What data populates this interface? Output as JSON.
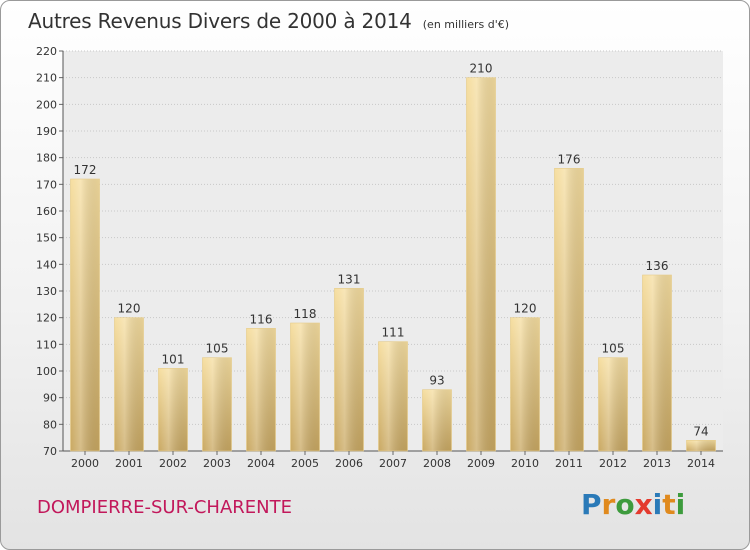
{
  "header": {
    "title": "Autres Revenus Divers de 2000 à 2014",
    "unit": "(en milliers d'€)"
  },
  "footer": {
    "commune": "DOMPIERRE-SUR-CHARENTE",
    "logo_text": "Proxiti",
    "logo_colors": [
      "#2a7ab8",
      "#e08a1e",
      "#3d9b3d",
      "#e43a2e",
      "#2a7ab8",
      "#e08a1e",
      "#3d9b3d"
    ]
  },
  "chart_data": {
    "type": "bar",
    "title": "Autres Revenus Divers de 2000 à 2014",
    "subtitle": "(en milliers d'€)",
    "xlabel": "",
    "ylabel": "",
    "categories": [
      "2000",
      "2001",
      "2002",
      "2003",
      "2004",
      "2005",
      "2006",
      "2007",
      "2008",
      "2009",
      "2010",
      "2011",
      "2012",
      "2013",
      "2014"
    ],
    "values": [
      172,
      120,
      101,
      105,
      116,
      118,
      131,
      111,
      93,
      210,
      120,
      176,
      105,
      136,
      74
    ],
    "ylim": [
      70,
      220
    ],
    "yticks": [
      70,
      80,
      90,
      100,
      110,
      120,
      130,
      140,
      150,
      160,
      170,
      180,
      190,
      200,
      210,
      220
    ],
    "grid": true,
    "bar_color_light": "#f6dea0",
    "bar_color_dark": "#c9a862"
  }
}
